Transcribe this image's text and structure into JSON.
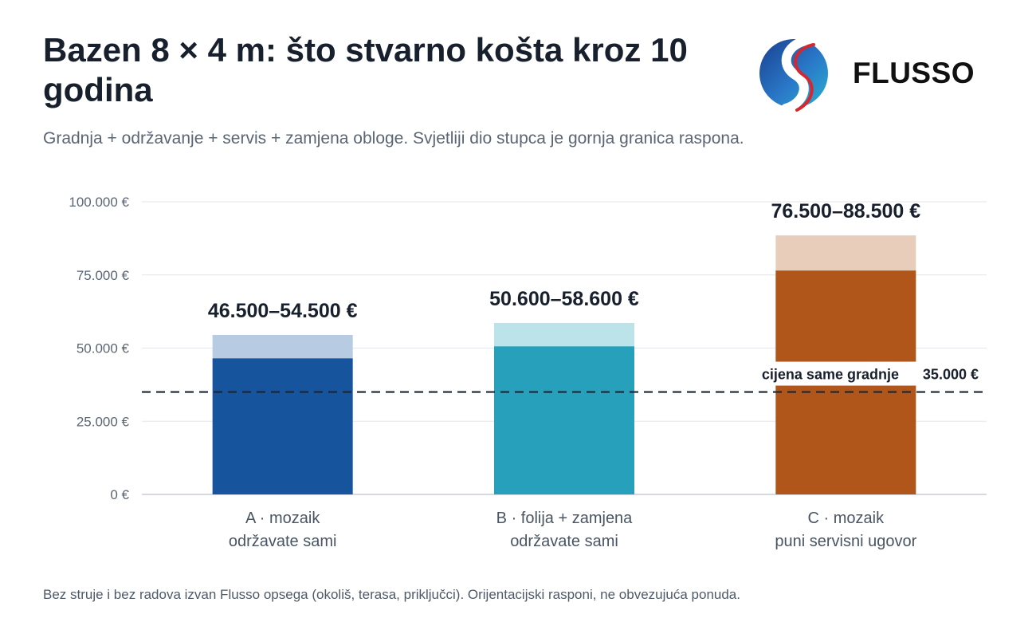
{
  "header": {
    "title": "Bazen 8 × 4 m: što stvarno košta kroz 10 godina",
    "subtitle": "Gradnja + održavanje + servis + zamjena obloge. Svjetliji dio stupca je gornja granica raspona."
  },
  "brand": {
    "name": "FLUSSO",
    "logo_icon": "flusso-swirl-logo-icon"
  },
  "footnote": "Bez struje i bez radova izvan Flusso opsega (okoliš, terasa, priključci). Orijentacijski rasponi, ne obvezujuća ponuda.",
  "chart_data": {
    "type": "bar",
    "stacked_range": true,
    "categories": [
      [
        "A · mozaik",
        "održavate sami"
      ],
      [
        "B · folija + zamjena",
        "održavate sami"
      ],
      [
        "C · mozaik",
        "puni servisni ugovor"
      ]
    ],
    "low": [
      46500,
      50600,
      76500
    ],
    "high": [
      54500,
      58600,
      88500
    ],
    "range_labels": [
      "46.500–54.500 €",
      "50.600–58.600 €",
      "76.500–88.500 €"
    ],
    "colors_solid": [
      "#17549e",
      "#27a0bb",
      "#b0561a"
    ],
    "colors_light": [
      "#b7cbe2",
      "#bde3ea",
      "#e8cdbb"
    ],
    "ylim": [
      0,
      100000
    ],
    "yticks": [
      0,
      25000,
      50000,
      75000,
      100000
    ],
    "ytick_labels": [
      "0 €",
      "25.000 €",
      "50.000 €",
      "75.000 €",
      "100.000 €"
    ],
    "grid": true,
    "reference_line": {
      "value": 35000,
      "label": "cijena same gradnje",
      "value_label": "35.000 €",
      "style": "dashed"
    }
  }
}
